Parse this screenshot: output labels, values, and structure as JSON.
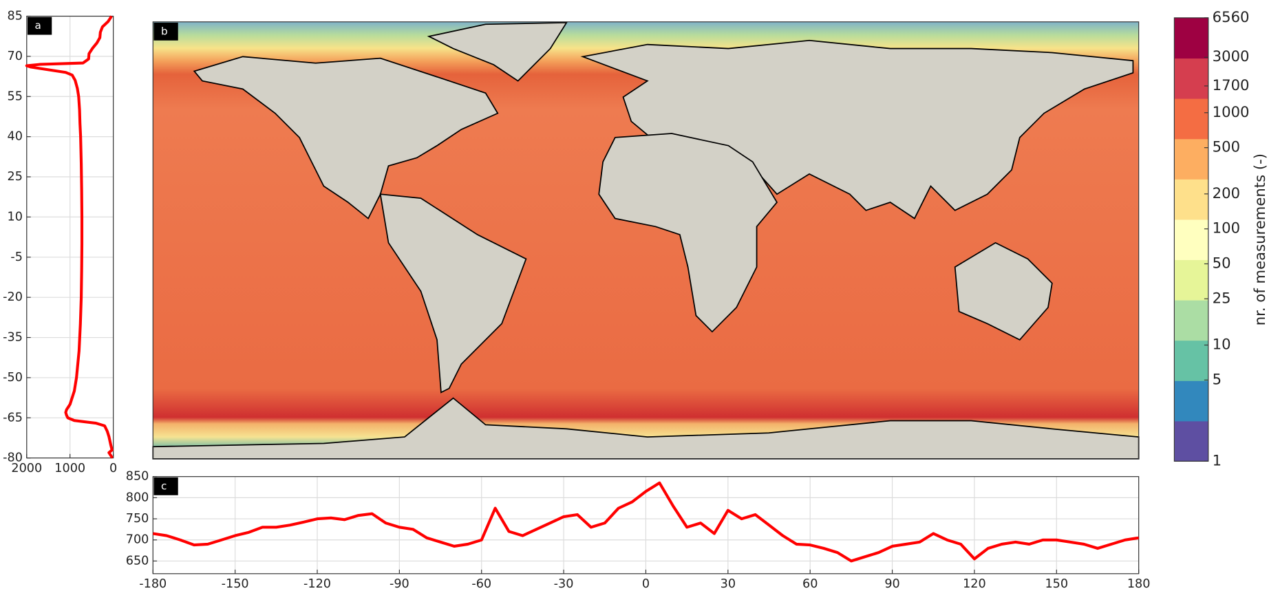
{
  "chart_data": [
    {
      "type": "line",
      "orientation": "horizontal",
      "label": "a",
      "color": "#ff0000",
      "grid": true,
      "y": [
        85,
        83,
        81,
        79,
        77,
        75,
        73,
        71,
        69,
        67.5,
        67,
        66.5,
        66,
        65,
        64,
        63,
        61,
        58,
        55,
        50,
        45,
        40,
        30,
        20,
        10,
        0,
        -10,
        -20,
        -30,
        -40,
        -50,
        -55,
        -60,
        -62,
        -63,
        -64,
        -65,
        -66,
        -67,
        -68,
        -70,
        -72,
        -75,
        -77,
        -78,
        -80
      ],
      "values": [
        40,
        120,
        250,
        300,
        310,
        380,
        480,
        560,
        570,
        700,
        1700,
        2000,
        1900,
        1500,
        1100,
        950,
        880,
        830,
        800,
        780,
        770,
        755,
        740,
        730,
        725,
        725,
        730,
        740,
        760,
        790,
        850,
        900,
        1000,
        1080,
        1100,
        1080,
        1050,
        900,
        400,
        200,
        140,
        100,
        60,
        30,
        100,
        20
      ],
      "xlim": [
        2000,
        0
      ],
      "xticks": [
        2000,
        1000,
        0
      ],
      "ylim": [
        -80,
        85
      ],
      "yticks": [
        85,
        70,
        55,
        40,
        25,
        10,
        -5,
        -20,
        -35,
        -50,
        -65,
        -80
      ]
    },
    {
      "type": "map",
      "label": "b",
      "colorbar": {
        "label": "nr. of measurements (-)",
        "log": true,
        "lim": [
          1,
          6560
        ],
        "ticks": [
          1,
          5,
          10,
          25,
          50,
          100,
          200,
          500,
          1000,
          1700,
          3000,
          6560
        ],
        "colors": [
          "#5e4fa2",
          "#3288bd",
          "#66c2a5",
          "#abdda4",
          "#e6f598",
          "#ffffbf",
          "#fee08b",
          "#fdae61",
          "#f46d43",
          "#d53e4f",
          "#9e0142"
        ]
      }
    },
    {
      "type": "line",
      "label": "c",
      "color": "#ff0000",
      "grid": true,
      "x": [
        -180,
        -175,
        -170,
        -165,
        -160,
        -155,
        -150,
        -145,
        -140,
        -135,
        -130,
        -125,
        -120,
        -115,
        -110,
        -105,
        -100,
        -95,
        -90,
        -85,
        -80,
        -75,
        -70,
        -65,
        -60,
        -55,
        -50,
        -45,
        -40,
        -35,
        -30,
        -25,
        -20,
        -15,
        -10,
        -5,
        0,
        5,
        10,
        15,
        20,
        25,
        30,
        35,
        40,
        45,
        50,
        55,
        60,
        65,
        70,
        75,
        80,
        85,
        90,
        95,
        100,
        105,
        110,
        115,
        120,
        125,
        130,
        135,
        140,
        145,
        150,
        155,
        160,
        165,
        170,
        175,
        180
      ],
      "values": [
        715,
        710,
        700,
        688,
        690,
        700,
        710,
        718,
        730,
        730,
        735,
        742,
        750,
        752,
        748,
        758,
        762,
        740,
        730,
        725,
        705,
        695,
        685,
        690,
        700,
        775,
        720,
        710,
        725,
        740,
        755,
        760,
        730,
        740,
        775,
        790,
        815,
        835,
        780,
        730,
        740,
        715,
        770,
        750,
        760,
        735,
        710,
        690,
        688,
        680,
        670,
        650,
        660,
        670,
        685,
        690,
        695,
        715,
        700,
        690,
        655,
        680,
        690,
        695,
        690,
        700,
        700,
        695,
        690,
        680,
        690,
        700,
        705
      ],
      "xlim": [
        -180,
        180
      ],
      "xticks": [
        -180,
        -150,
        -120,
        -90,
        -60,
        -30,
        0,
        30,
        60,
        90,
        120,
        150,
        180
      ],
      "ylim": [
        620,
        850
      ],
      "yticks": [
        650,
        700,
        750,
        800,
        850
      ]
    }
  ]
}
